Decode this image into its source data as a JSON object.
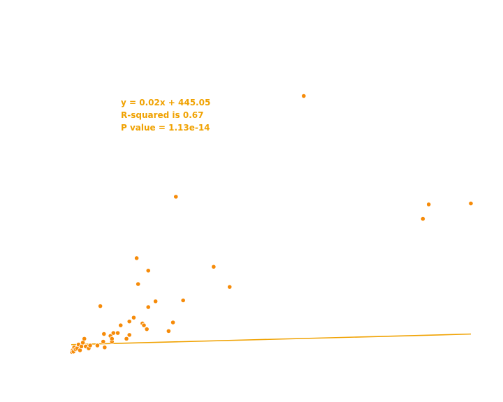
{
  "chart_data": {
    "type": "scatter",
    "title": "",
    "xlabel": "",
    "ylabel": "",
    "grid": false,
    "xlim": [
      0,
      28000
    ],
    "ylim": [
      0,
      16000
    ],
    "colors": {
      "points": "#f68b09",
      "point_edge": "#ffffff",
      "fit_line": "#f0a202",
      "annotation": "#f0a202"
    },
    "annotations": {
      "equation": "y = 0.02x + 445.05",
      "r_squared": "R-squared is 0.67",
      "p_value": "P value = 1.13e-14"
    },
    "fit_line": {
      "slope": 0.02,
      "intercept": 445.05,
      "x": [
        0,
        27500
      ]
    },
    "points": [
      {
        "x": 50,
        "y": 60
      },
      {
        "x": 100,
        "y": 150
      },
      {
        "x": 150,
        "y": 80
      },
      {
        "x": 200,
        "y": 300
      },
      {
        "x": 300,
        "y": 200
      },
      {
        "x": 400,
        "y": 250
      },
      {
        "x": 500,
        "y": 450
      },
      {
        "x": 600,
        "y": 150
      },
      {
        "x": 700,
        "y": 350
      },
      {
        "x": 800,
        "y": 550
      },
      {
        "x": 900,
        "y": 750
      },
      {
        "x": 1000,
        "y": 350
      },
      {
        "x": 1200,
        "y": 250
      },
      {
        "x": 1300,
        "y": 400
      },
      {
        "x": 1800,
        "y": 400
      },
      {
        "x": 2000,
        "y": 2450
      },
      {
        "x": 2200,
        "y": 600
      },
      {
        "x": 2300,
        "y": 300
      },
      {
        "x": 2250,
        "y": 1000
      },
      {
        "x": 2700,
        "y": 900
      },
      {
        "x": 2800,
        "y": 600
      },
      {
        "x": 2800,
        "y": 750
      },
      {
        "x": 2900,
        "y": 1050
      },
      {
        "x": 3200,
        "y": 1050
      },
      {
        "x": 3400,
        "y": 1450
      },
      {
        "x": 3800,
        "y": 750
      },
      {
        "x": 4000,
        "y": 1650
      },
      {
        "x": 4000,
        "y": 950
      },
      {
        "x": 4300,
        "y": 1850
      },
      {
        "x": 4500,
        "y": 4950
      },
      {
        "x": 4600,
        "y": 3600
      },
      {
        "x": 4900,
        "y": 1550
      },
      {
        "x": 5000,
        "y": 1450
      },
      {
        "x": 5200,
        "y": 1250
      },
      {
        "x": 5300,
        "y": 2400
      },
      {
        "x": 5300,
        "y": 4300
      },
      {
        "x": 5800,
        "y": 2700
      },
      {
        "x": 6700,
        "y": 1150
      },
      {
        "x": 7000,
        "y": 1600
      },
      {
        "x": 7200,
        "y": 8150
      },
      {
        "x": 7700,
        "y": 2750
      },
      {
        "x": 9800,
        "y": 4500
      },
      {
        "x": 10900,
        "y": 3450
      },
      {
        "x": 16000,
        "y": 13400
      },
      {
        "x": 24200,
        "y": 7000
      },
      {
        "x": 24600,
        "y": 7750
      },
      {
        "x": 27500,
        "y": 7800
      }
    ]
  }
}
